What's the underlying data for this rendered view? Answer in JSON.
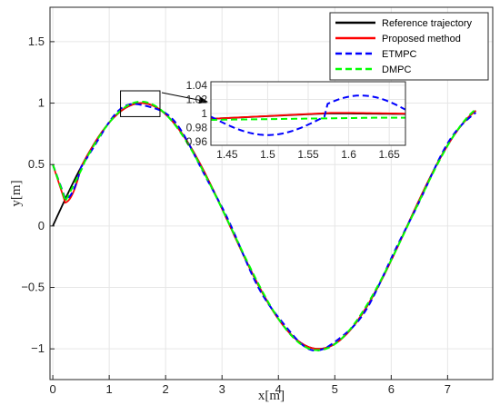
{
  "chart_data": {
    "type": "line",
    "title": "",
    "xlabel": "x[m]",
    "ylabel": "y[m]",
    "xlim": [
      -0.05,
      7.8
    ],
    "ylim": [
      -1.25,
      1.78
    ],
    "xticks": [
      0,
      1,
      2,
      3,
      4,
      5,
      6,
      7
    ],
    "yticks": [
      -1,
      -0.5,
      0,
      0.5,
      1,
      1.5
    ],
    "grid": true,
    "legend_position": "top-right",
    "series": [
      {
        "name": "Reference trajectory",
        "color": "#000000",
        "style": "solid"
      },
      {
        "name": "Proposed method",
        "color": "#ff0000",
        "style": "solid"
      },
      {
        "name": "ETMPC",
        "color": "#0000ff",
        "style": "dashed"
      },
      {
        "name": "DMPC",
        "color": "#00ff00",
        "style": "dashed"
      }
    ],
    "inset": {
      "xlim": [
        1.43,
        1.67
      ],
      "ylim": [
        0.955,
        1.045
      ],
      "xticks": [
        1.45,
        1.5,
        1.55,
        1.6,
        1.65
      ],
      "yticks": [
        0.96,
        0.98,
        1,
        1.02,
        1.04
      ],
      "zoom_region": {
        "x": [
          1.2,
          1.9
        ],
        "y": [
          0.89,
          1.1
        ]
      }
    }
  }
}
